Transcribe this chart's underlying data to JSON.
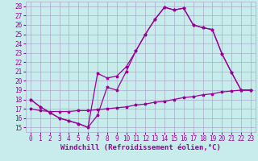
{
  "xlabel": "Windchill (Refroidissement éolien,°C)",
  "background_color": "#c8ecec",
  "line_color": "#990099",
  "grid_color": "#aaaacc",
  "xlim": [
    -0.5,
    23.5
  ],
  "ylim": [
    14.5,
    28.5
  ],
  "xticks": [
    0,
    1,
    2,
    3,
    4,
    5,
    6,
    7,
    8,
    9,
    10,
    11,
    12,
    13,
    14,
    15,
    16,
    17,
    18,
    19,
    20,
    21,
    22,
    23
  ],
  "yticks": [
    15,
    16,
    17,
    18,
    19,
    20,
    21,
    22,
    23,
    24,
    25,
    26,
    27,
    28
  ],
  "line1_x": [
    0,
    1,
    2,
    3,
    4,
    5,
    6,
    7,
    8,
    9,
    10,
    11,
    12,
    13,
    14,
    15,
    16,
    17,
    18,
    19,
    20,
    21,
    22,
    23
  ],
  "line1_y": [
    18.0,
    17.2,
    16.6,
    16.0,
    15.7,
    15.4,
    15.0,
    16.3,
    19.3,
    19.0,
    21.0,
    23.2,
    25.0,
    26.6,
    27.9,
    27.6,
    27.8,
    26.0,
    25.7,
    25.5,
    22.9,
    20.9,
    19.0,
    19.0
  ],
  "line2_x": [
    0,
    1,
    2,
    3,
    4,
    5,
    6,
    7,
    8,
    9,
    10,
    11,
    12,
    13,
    14,
    15,
    16,
    17,
    18,
    19,
    20,
    21,
    22,
    23
  ],
  "line2_y": [
    18.0,
    17.2,
    16.6,
    16.0,
    15.7,
    15.4,
    15.0,
    20.8,
    20.3,
    20.5,
    21.5,
    23.2,
    25.0,
    26.6,
    27.9,
    27.6,
    27.8,
    26.0,
    25.7,
    25.5,
    22.9,
    20.9,
    19.0,
    19.0
  ],
  "line3_x": [
    0,
    1,
    2,
    3,
    4,
    5,
    6,
    7,
    8,
    9,
    10,
    11,
    12,
    13,
    14,
    15,
    16,
    17,
    18,
    19,
    20,
    21,
    22,
    23
  ],
  "line3_y": [
    17.0,
    16.8,
    16.7,
    16.7,
    16.7,
    16.8,
    16.8,
    16.9,
    17.0,
    17.1,
    17.2,
    17.4,
    17.5,
    17.7,
    17.8,
    18.0,
    18.2,
    18.3,
    18.5,
    18.6,
    18.8,
    18.9,
    19.0,
    19.0
  ],
  "font_family": "monospace",
  "tick_fontsize": 5.5,
  "label_fontsize": 6.5
}
